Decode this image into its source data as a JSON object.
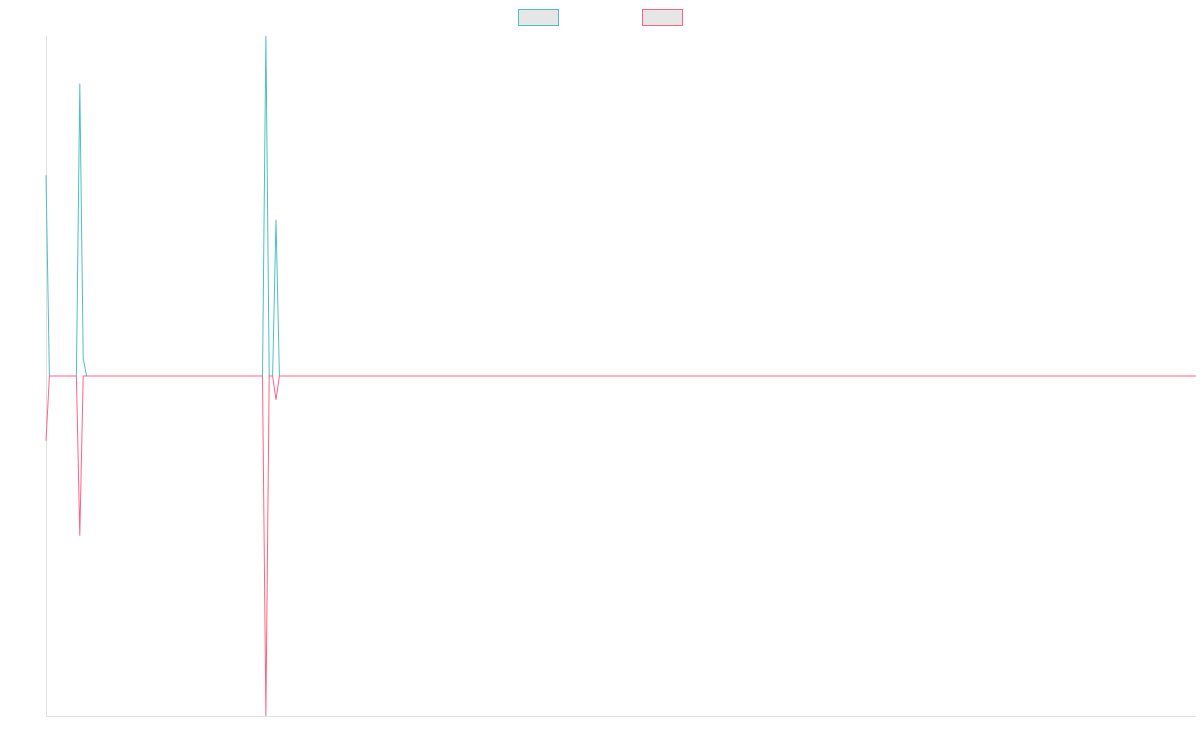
{
  "chart_data": {
    "type": "line",
    "title": "",
    "xlabel": "",
    "ylabel": "",
    "grid": false,
    "legend": "top-center",
    "x_count": 340,
    "ylim": [
      -1,
      1
    ],
    "series": [
      {
        "color": "#4bc0c0",
        "points": [
          [
            0,
            0.59
          ],
          [
            1,
            0
          ],
          [
            9,
            0
          ],
          [
            10,
            0.86
          ],
          [
            11,
            0.05
          ],
          [
            12,
            0
          ],
          [
            64,
            0
          ],
          [
            65,
            1.0
          ],
          [
            66,
            0
          ],
          [
            67,
            0
          ],
          [
            68,
            0.46
          ],
          [
            69,
            0
          ],
          [
            340,
            0
          ]
        ]
      },
      {
        "color": "#ff6384",
        "points": [
          [
            0,
            -0.19
          ],
          [
            1,
            0
          ],
          [
            9,
            0
          ],
          [
            10,
            -0.47
          ],
          [
            11,
            0
          ],
          [
            64,
            0
          ],
          [
            65,
            -1.0
          ],
          [
            66,
            0
          ],
          [
            67,
            0
          ],
          [
            68,
            -0.07
          ],
          [
            69,
            0
          ],
          [
            340,
            0
          ]
        ]
      }
    ]
  }
}
